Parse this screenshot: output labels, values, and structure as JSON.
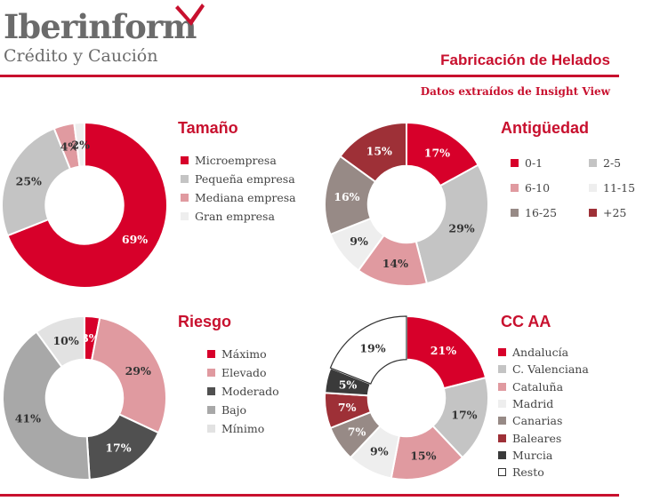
{
  "header": {
    "logo_name": "Iberinform",
    "logo_tagline": "Crédito y Caución",
    "title": "Fabricación de Helados",
    "source": "Datos extraídos de Insight View",
    "brand_color": "#c8102e"
  },
  "chart_data": [
    {
      "id": "tamano",
      "type": "pie",
      "title": "Tamaño",
      "categories": [
        "Microempresa",
        "Pequeña empresa",
        "Mediana empresa",
        "Gran empresa"
      ],
      "values": [
        69,
        25,
        4,
        2
      ],
      "labels": [
        "69%",
        "25%",
        "4%",
        "2%"
      ],
      "colors": [
        "#d7002a",
        "#c4c4c4",
        "#e09aa0",
        "#eeeeee"
      ],
      "legend": "right"
    },
    {
      "id": "antiguedad",
      "type": "pie",
      "title": "Antigüedad",
      "categories": [
        "0-1",
        "2-5",
        "6-10",
        "11-15",
        "16-25",
        "+25"
      ],
      "values": [
        17,
        29,
        14,
        9,
        16,
        15
      ],
      "labels": [
        "17%",
        "29%",
        "14%",
        "9%",
        "16%",
        "15%"
      ],
      "colors": [
        "#d7002a",
        "#c4c4c4",
        "#e09aa0",
        "#eeeeee",
        "#978a86",
        "#9e3037"
      ],
      "legend": "right"
    },
    {
      "id": "riesgo",
      "type": "pie",
      "title": "Riesgo",
      "categories": [
        "Máximo",
        "Elevado",
        "Moderado",
        "Bajo",
        "Mínimo"
      ],
      "values": [
        3,
        29,
        17,
        41,
        10
      ],
      "labels": [
        "3%",
        "29%",
        "17%",
        "41%",
        "10%"
      ],
      "colors": [
        "#d7002a",
        "#e09aa0",
        "#505050",
        "#a8a8a8",
        "#e2e2e2"
      ],
      "legend": "right"
    },
    {
      "id": "ccaa",
      "type": "pie",
      "title": "CC AA",
      "categories": [
        "Andalucía",
        "C. Valenciana",
        "Cataluña",
        "Madrid",
        "Canarias",
        "Baleares",
        "Murcia",
        "Resto"
      ],
      "values": [
        21,
        17,
        15,
        9,
        7,
        7,
        5,
        19
      ],
      "labels": [
        "21%",
        "17%",
        "15%",
        "9%",
        "7%",
        "7%",
        "5%",
        "19%"
      ],
      "colors": [
        "#d7002a",
        "#c4c4c4",
        "#e09aa0",
        "#eeeeee",
        "#978a86",
        "#9e3037",
        "#3a3a3a",
        "#ffffff"
      ],
      "legend": "right"
    }
  ]
}
